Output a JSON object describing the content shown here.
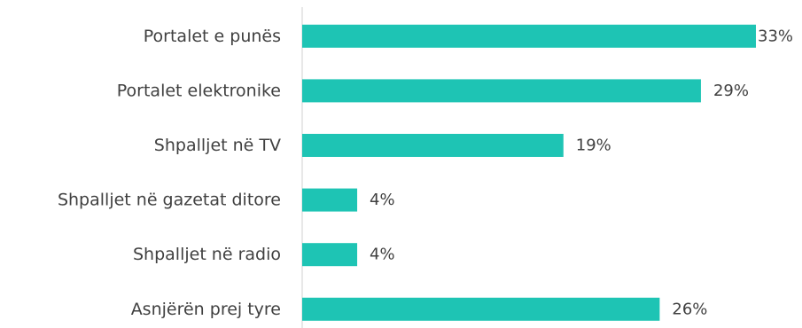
{
  "chart_data": {
    "type": "bar",
    "orientation": "horizontal",
    "categories": [
      "Portalet e punës",
      "Portalet elektronike",
      "Shpalljet në TV",
      "Shpalljet në gazetat ditore",
      "Shpalljet në radio",
      "Asnjërën prej tyre"
    ],
    "values": [
      33,
      29,
      19,
      4,
      4,
      26
    ],
    "value_labels": [
      "33%",
      "29%",
      "19%",
      "4%",
      "4%",
      "26%"
    ],
    "unit": "%",
    "xlim": [
      0,
      33
    ],
    "grid": false,
    "legend": "none",
    "bar_color": "#1ec4b4",
    "axis_color": "#d9d9d9",
    "text_color": "#404040"
  }
}
